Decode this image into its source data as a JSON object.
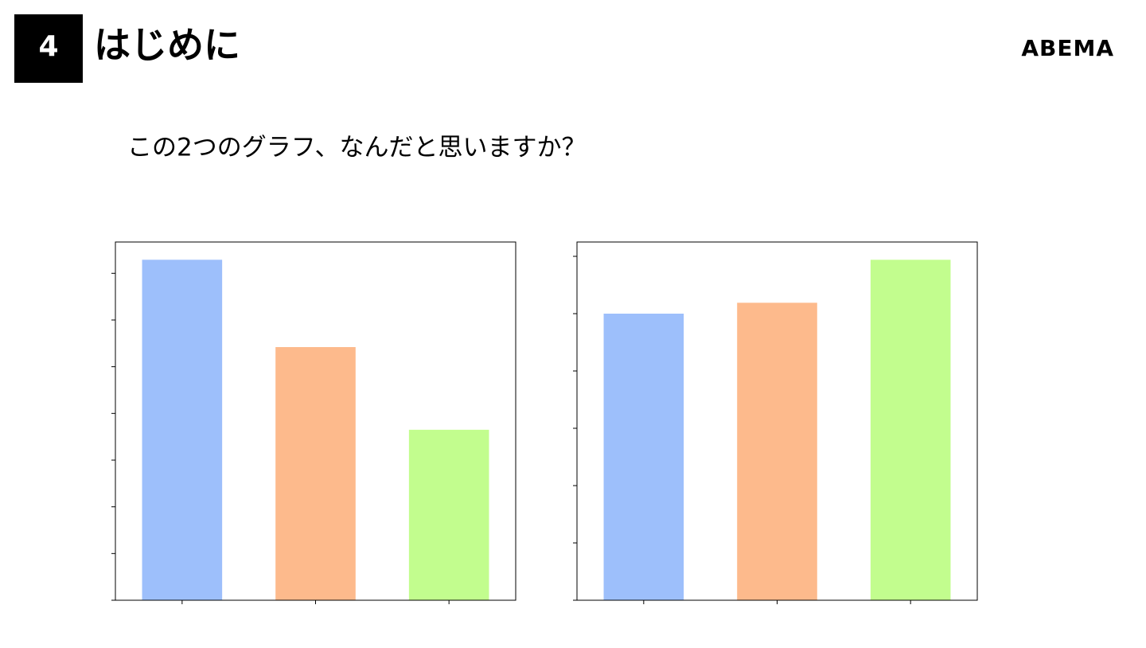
{
  "header": {
    "number": "4",
    "title": "はじめに",
    "logo": "ABEMA"
  },
  "question": "この2つのグラフ、なんだと思いますか？",
  "chart_data": [
    {
      "type": "bar",
      "categories": [
        null,
        null,
        null
      ],
      "values": [
        7.29,
        5.42,
        3.65
      ],
      "colors": [
        "#9dbffb",
        "#fdba8c",
        "#c2fd8e"
      ],
      "ylim": [
        0,
        7.67
      ],
      "yticks": [
        0,
        1,
        2,
        3,
        4,
        5,
        6,
        7
      ]
    },
    {
      "type": "bar",
      "categories": [
        null,
        null,
        null
      ],
      "values": [
        5.0,
        5.19,
        5.94
      ],
      "colors": [
        "#9dbffb",
        "#fdba8c",
        "#c2fd8e"
      ],
      "ylim": [
        0,
        6.25
      ],
      "yticks": [
        0,
        1,
        2,
        3,
        4,
        5,
        6
      ]
    }
  ]
}
